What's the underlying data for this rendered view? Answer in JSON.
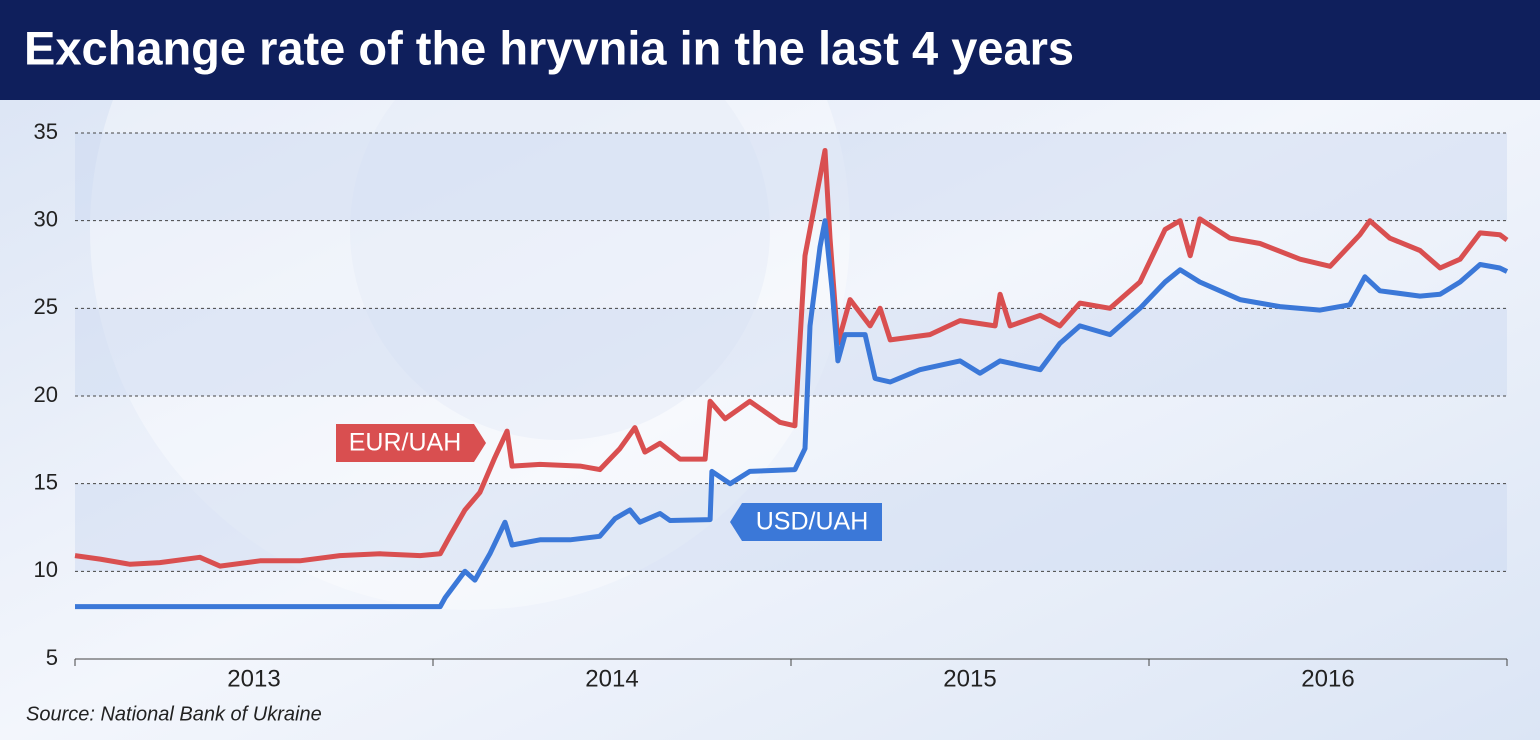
{
  "chart_data": {
    "type": "line",
    "title": "Exchange rate of the hryvnia in the last 4 years",
    "source": "Source: National Bank of Ukraine",
    "xlim": [
      2013,
      2017
    ],
    "xticks": [
      2013,
      2014,
      2015,
      2016,
      2017
    ],
    "year_labels": [
      "2013",
      "2014",
      "2015",
      "2016"
    ],
    "ylim": [
      5,
      35
    ],
    "yticks": [
      5,
      10,
      15,
      20,
      25,
      30,
      35
    ],
    "grid": true,
    "series": [
      {
        "name": "EUR/UAH",
        "color": "#d94f50",
        "x": [
          2013.0,
          2013.07,
          2013.154,
          2013.237,
          2013.349,
          2013.405,
          2013.517,
          2013.628,
          2013.74,
          2013.852,
          2013.964,
          2014.02,
          2014.047,
          2014.089,
          2014.131,
          2014.173,
          2014.207,
          2014.221,
          2014.299,
          2014.411,
          2014.466,
          2014.522,
          2014.564,
          2014.592,
          2014.634,
          2014.69,
          2014.76,
          2014.774,
          2014.816,
          2014.885,
          2014.969,
          2015.011,
          2015.039,
          2015.067,
          2015.095,
          2015.109,
          2015.131,
          2015.165,
          2015.221,
          2015.249,
          2015.277,
          2015.388,
          2015.472,
          2015.57,
          2015.584,
          2015.612,
          2015.696,
          2015.751,
          2015.807,
          2015.891,
          2015.975,
          2016.045,
          2016.087,
          2016.115,
          2016.142,
          2016.226,
          2016.31,
          2016.422,
          2016.506,
          2016.589,
          2016.617,
          2016.673,
          2016.757,
          2016.813,
          2016.869,
          2016.925,
          2016.98,
          2017.0
        ],
        "values": [
          10.9,
          10.7,
          10.4,
          10.5,
          10.8,
          10.3,
          10.6,
          10.6,
          10.9,
          11,
          10.9,
          11,
          12,
          13.5,
          14.5,
          16.5,
          18,
          16,
          16.1,
          16,
          15.8,
          17,
          18.2,
          16.8,
          17.3,
          16.4,
          16.4,
          19.7,
          18.7,
          19.7,
          18.5,
          18.3,
          28,
          31,
          34,
          29,
          23,
          25.5,
          24,
          25,
          23.2,
          23.5,
          24.3,
          24,
          25.8,
          24,
          24.6,
          24,
          25.3,
          25,
          26.5,
          29.5,
          30,
          28,
          30.1,
          29,
          28.7,
          27.8,
          27.4,
          29.2,
          30,
          29,
          28.3,
          27.3,
          27.8,
          29.3,
          29.2,
          28.9
        ]
      },
      {
        "name": "USD/UAH",
        "color": "#3b78d8",
        "x": [
          2013.0,
          2014.02,
          2014.034,
          2014.089,
          2014.117,
          2014.159,
          2014.201,
          2014.221,
          2014.299,
          2014.383,
          2014.466,
          2014.508,
          2014.55,
          2014.578,
          2014.634,
          2014.662,
          2014.774,
          2014.779,
          2014.83,
          2014.885,
          2015.011,
          2015.039,
          2015.053,
          2015.081,
          2015.095,
          2015.115,
          2015.131,
          2015.151,
          2015.207,
          2015.235,
          2015.277,
          2015.36,
          2015.472,
          2015.528,
          2015.584,
          2015.696,
          2015.751,
          2015.807,
          2015.891,
          2015.975,
          2016.045,
          2016.087,
          2016.142,
          2016.254,
          2016.366,
          2016.478,
          2016.561,
          2016.603,
          2016.645,
          2016.757,
          2016.813,
          2016.869,
          2016.925,
          2016.98,
          2017.0
        ],
        "values": [
          7.99,
          7.99,
          8.5,
          10,
          9.5,
          11,
          12.8,
          11.5,
          11.8,
          11.8,
          12,
          13,
          13.5,
          12.8,
          13.3,
          12.9,
          12.95,
          15.7,
          15,
          15.7,
          15.8,
          17,
          24,
          28.5,
          30,
          26,
          22,
          23.5,
          23.5,
          21,
          20.8,
          21.5,
          22,
          21.3,
          22,
          21.5,
          23,
          24,
          23.5,
          25,
          26.5,
          27.2,
          26.5,
          25.5,
          25.1,
          24.9,
          25.2,
          26.8,
          26,
          25.7,
          25.8,
          26.5,
          27.5,
          27.3,
          27.1
        ]
      }
    ]
  }
}
